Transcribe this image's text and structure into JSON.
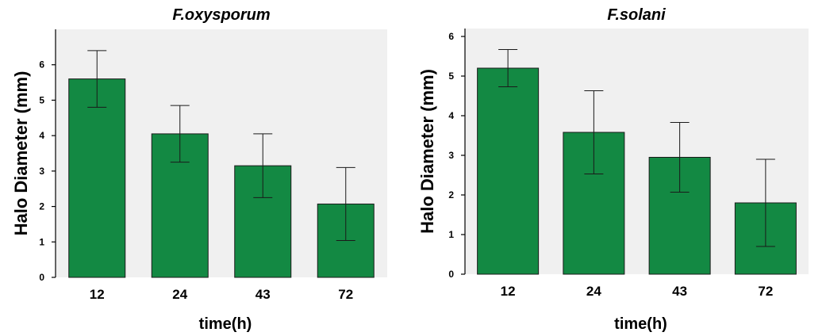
{
  "chart_data": [
    {
      "type": "bar",
      "title": "F.oxysporum",
      "xlabel": "time(h)",
      "ylabel": "Halo Diameter (mm)",
      "categories": [
        "12",
        "24",
        "43",
        "72"
      ],
      "values": [
        5.6,
        4.05,
        3.15,
        2.07
      ],
      "error": [
        0.8,
        0.8,
        0.9,
        1.03
      ],
      "yticks": [
        0,
        1,
        2,
        3,
        4,
        5,
        6
      ],
      "ylim": [
        0,
        7.0
      ],
      "grid": false,
      "bar_color": "#138943"
    },
    {
      "type": "bar",
      "title": "F.solani",
      "xlabel": "time(h)",
      "ylabel": "Halo Diameter (mm)",
      "categories": [
        "12",
        "24",
        "43",
        "72"
      ],
      "values": [
        5.2,
        3.58,
        2.95,
        1.8
      ],
      "error": [
        0.47,
        1.05,
        0.88,
        1.1
      ],
      "yticks": [
        0,
        1,
        2,
        3,
        4,
        5,
        6
      ],
      "ylim": [
        0,
        6.2
      ],
      "grid": false,
      "bar_color": "#138943"
    }
  ]
}
